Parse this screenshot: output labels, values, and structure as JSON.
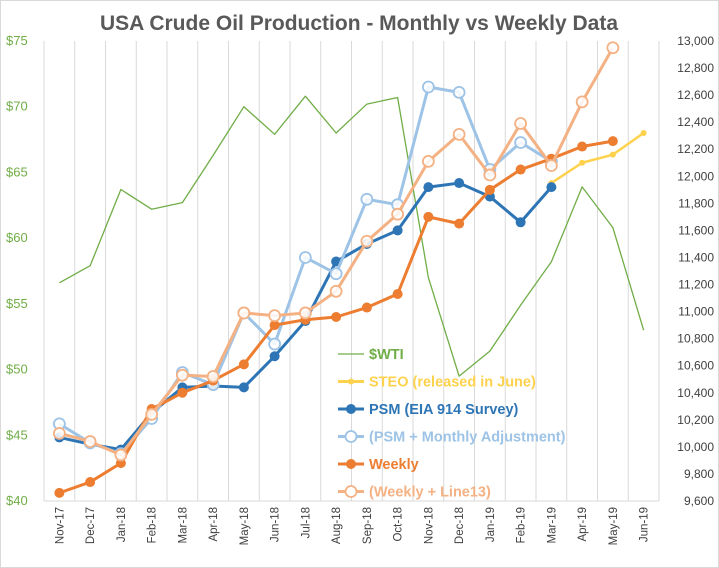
{
  "chart_data": {
    "type": "line",
    "title": "USA Crude Oil Production - Monthly vs Weekly Data",
    "categories": [
      "Nov-17",
      "Dec-17",
      "Jan-18",
      "Feb-18",
      "Mar-18",
      "Apr-18",
      "May-18",
      "Jun-18",
      "Jul-18",
      "Aug-18",
      "Sep-18",
      "Oct-18",
      "Nov-18",
      "Dec-18",
      "Jan-19",
      "Feb-19",
      "Mar-19",
      "Apr-19",
      "May-19",
      "Jun-19"
    ],
    "left_axis": {
      "ticks": [
        "$40",
        "$45",
        "$50",
        "$55",
        "$60",
        "$65",
        "$70",
        "$75"
      ],
      "ylim": [
        40,
        75
      ],
      "color": "#70ad47"
    },
    "right_axis": {
      "ticks": [
        "9,600",
        "9,800",
        "10,000",
        "10,200",
        "10,400",
        "10,600",
        "10,800",
        "11,000",
        "11,200",
        "11,400",
        "11,600",
        "11,800",
        "12,000",
        "12,200",
        "12,400",
        "12,600",
        "12,800",
        "13,000"
      ],
      "ylim": [
        9600,
        13000
      ]
    },
    "series": [
      {
        "name": "$WTI",
        "axis": "left",
        "color": "#70ad47",
        "markers": false,
        "width": 1.3,
        "values": [
          56.6,
          57.9,
          63.7,
          62.2,
          62.7,
          66.3,
          70.0,
          67.9,
          70.8,
          68.0,
          70.2,
          70.7,
          57.0,
          49.5,
          51.4,
          54.9,
          58.2,
          63.9,
          60.8,
          53.0
        ]
      },
      {
        "name": "STEO (released in June)",
        "axis": "right",
        "color": "#ffd24d",
        "markers": "small",
        "width": 2.5,
        "values": [
          null,
          null,
          null,
          null,
          null,
          null,
          null,
          null,
          null,
          null,
          null,
          null,
          null,
          null,
          null,
          null,
          11950,
          12100,
          12160,
          12320
        ]
      },
      {
        "name": "PSM (EIA 914 Survey)",
        "axis": "right",
        "color": "#2e75b6",
        "markers": "filled",
        "width": 3,
        "values": [
          10070,
          10020,
          9980,
          10250,
          10440,
          10450,
          10440,
          10670,
          10930,
          11370,
          11500,
          11600,
          11920,
          11950,
          11850,
          11660,
          11920,
          null,
          null,
          null
        ]
      },
      {
        "name": "(PSM + Monthly Adjustment)",
        "axis": "right",
        "color": "#9dc3e6",
        "markers": "hollow",
        "width": 3,
        "values": [
          10170,
          10030,
          9950,
          10210,
          10550,
          10460,
          10990,
          10760,
          11400,
          11280,
          11830,
          11790,
          12660,
          12620,
          12050,
          12250,
          12110,
          null,
          null,
          null
        ]
      },
      {
        "name": "Weekly",
        "axis": "right",
        "color": "#ed7d31",
        "markers": "filled",
        "width": 3,
        "values": [
          9660,
          9740,
          9880,
          10280,
          10400,
          10490,
          10610,
          10900,
          10940,
          10960,
          11030,
          11130,
          11700,
          11650,
          11900,
          12050,
          12130,
          12220,
          12260,
          null
        ]
      },
      {
        "name": "(Weekly + Line13)",
        "axis": "right",
        "color": "#f4b183",
        "markers": "hollow",
        "width": 3,
        "values": [
          10100,
          10040,
          9940,
          10240,
          10530,
          10520,
          10990,
          10970,
          10990,
          11150,
          11520,
          11720,
          12110,
          12310,
          12010,
          12390,
          12080,
          12550,
          12950,
          null
        ]
      }
    ]
  }
}
